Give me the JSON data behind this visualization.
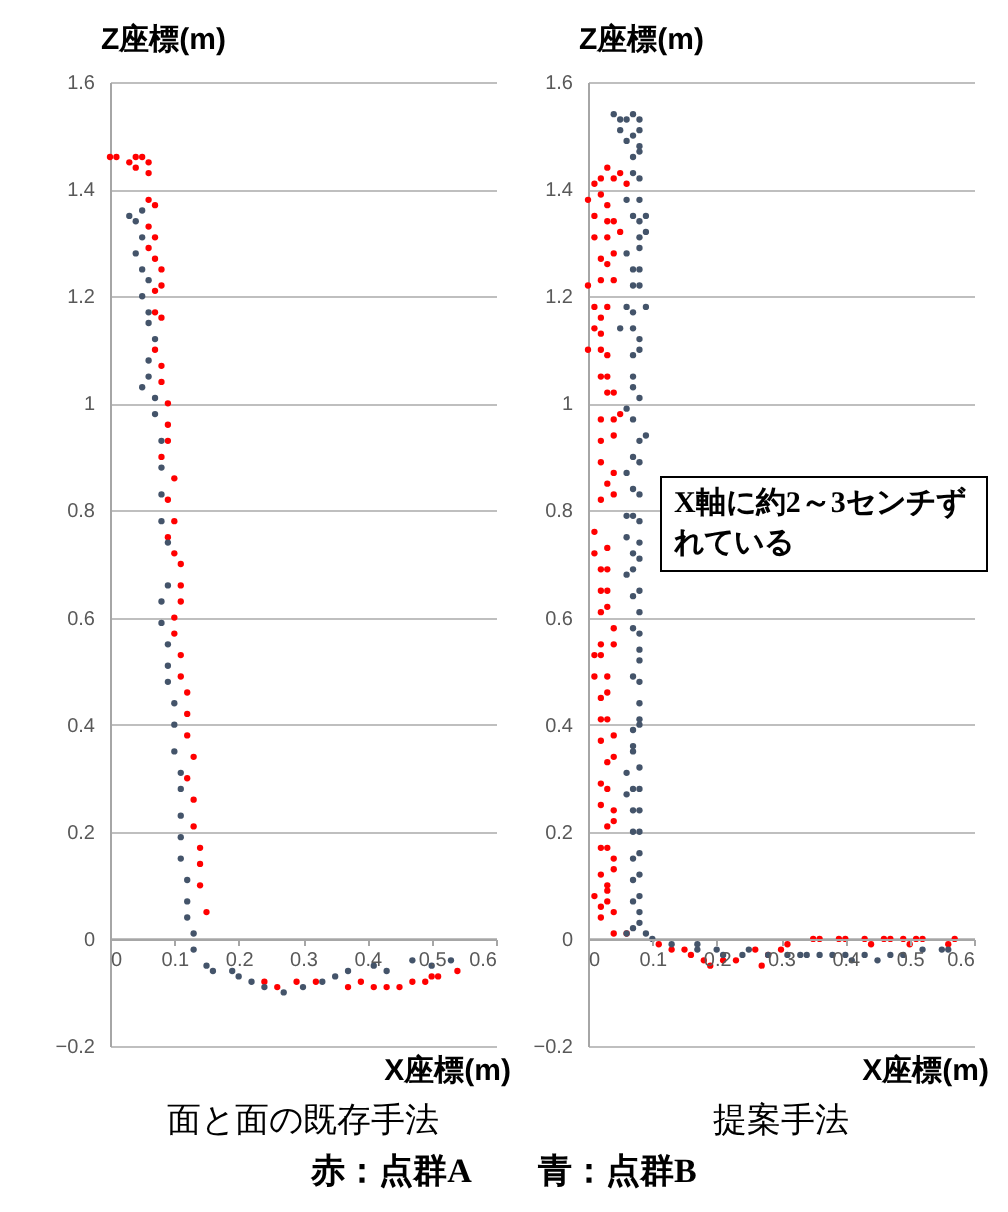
{
  "chart_data": [
    {
      "type": "scatter",
      "title": "面と面の既存手法",
      "xlabel": "X座標(m)",
      "ylabel": "Z座標(m)",
      "xlim": [
        0,
        0.6
      ],
      "ylim": [
        -0.2,
        1.6
      ],
      "xticks": [
        0,
        0.1,
        0.2,
        0.3,
        0.4,
        0.5,
        0.6
      ],
      "yticks": [
        -0.2,
        0,
        0.2,
        0.4,
        0.6,
        0.8,
        1,
        1.2,
        1.4,
        1.6
      ],
      "grid": "y",
      "marker": "circle",
      "annotations": [
        "赤：点群A　　青：点群B"
      ],
      "series": [
        {
          "color": "#ff0000",
          "x": [
            0.0,
            0.01,
            0.03,
            0.04,
            0.05,
            0.06,
            0.04,
            0.06,
            0.06,
            0.07,
            0.06,
            0.07,
            0.06,
            0.07,
            0.08,
            0.08,
            0.07,
            0.07,
            0.08,
            0.07,
            0.08,
            0.08,
            0.09,
            0.09,
            0.09,
            0.08,
            0.1,
            0.09,
            0.1,
            0.09,
            0.1,
            0.11,
            0.11,
            0.11,
            0.1,
            0.1,
            0.11,
            0.11,
            0.12,
            0.12,
            0.12,
            0.13,
            0.12,
            0.13,
            0.13,
            0.14,
            0.14,
            0.14,
            0.15,
            0.24,
            0.26,
            0.29,
            0.32,
            0.37,
            0.39,
            0.41,
            0.43,
            0.45,
            0.47,
            0.49,
            0.5,
            0.51,
            0.54
          ],
          "values": [
            1.46,
            1.46,
            1.45,
            1.46,
            1.46,
            1.45,
            1.44,
            1.43,
            1.38,
            1.37,
            1.33,
            1.31,
            1.29,
            1.27,
            1.25,
            1.22,
            1.21,
            1.17,
            1.16,
            1.1,
            1.07,
            1.04,
            1.0,
            0.96,
            0.93,
            0.9,
            0.86,
            0.82,
            0.78,
            0.75,
            0.72,
            0.7,
            0.66,
            0.63,
            0.6,
            0.57,
            0.53,
            0.49,
            0.46,
            0.42,
            0.38,
            0.34,
            0.3,
            0.26,
            0.21,
            0.17,
            0.14,
            0.1,
            0.05,
            -0.08,
            -0.09,
            -0.08,
            -0.08,
            -0.09,
            -0.08,
            -0.09,
            -0.09,
            -0.09,
            -0.08,
            -0.08,
            -0.07,
            -0.07,
            -0.06
          ]
        },
        {
          "color": "#44546a",
          "x": [
            0.03,
            0.04,
            0.05,
            0.05,
            0.04,
            0.05,
            0.06,
            0.05,
            0.06,
            0.06,
            0.07,
            0.06,
            0.06,
            0.05,
            0.07,
            0.07,
            0.08,
            0.08,
            0.08,
            0.08,
            0.09,
            0.09,
            0.08,
            0.08,
            0.09,
            0.09,
            0.09,
            0.1,
            0.1,
            0.1,
            0.11,
            0.11,
            0.11,
            0.11,
            0.11,
            0.12,
            0.12,
            0.12,
            0.13,
            0.13,
            0.15,
            0.16,
            0.19,
            0.2,
            0.22,
            0.24,
            0.27,
            0.3,
            0.33,
            0.35,
            0.37,
            0.41,
            0.43,
            0.47,
            0.5,
            0.53
          ],
          "values": [
            1.35,
            1.34,
            1.36,
            1.31,
            1.28,
            1.25,
            1.23,
            1.2,
            1.17,
            1.15,
            1.12,
            1.08,
            1.05,
            1.03,
            1.01,
            0.98,
            0.93,
            0.88,
            0.83,
            0.78,
            0.74,
            0.66,
            0.63,
            0.59,
            0.55,
            0.51,
            0.48,
            0.44,
            0.4,
            0.35,
            0.31,
            0.28,
            0.23,
            0.19,
            0.15,
            0.11,
            0.07,
            0.04,
            0.01,
            -0.02,
            -0.05,
            -0.06,
            -0.06,
            -0.07,
            -0.08,
            -0.09,
            -0.1,
            -0.09,
            -0.08,
            -0.07,
            -0.06,
            -0.05,
            -0.06,
            -0.04,
            -0.05,
            -0.04
          ]
        }
      ]
    },
    {
      "type": "scatter",
      "title": "提案手法",
      "xlabel": "X座標(m)",
      "ylabel": "Z座標(m)",
      "xlim": [
        0,
        0.6
      ],
      "ylim": [
        -0.2,
        1.6
      ],
      "xticks": [
        0,
        0.1,
        0.2,
        0.3,
        0.4,
        0.5,
        0.6
      ],
      "yticks": [
        -0.2,
        0,
        0.2,
        0.4,
        0.6,
        0.8,
        1,
        1.2,
        1.4,
        1.6
      ],
      "grid": "y",
      "marker": "circle",
      "annotations": [
        "X軸に約2～3センチずれている"
      ],
      "series": [
        {
          "color": "#ff0000",
          "x": [
            0.01,
            0.02,
            0.04,
            0.05,
            0.03,
            0.06,
            0.0,
            0.02,
            0.03,
            0.01,
            0.03,
            0.04,
            0.01,
            0.03,
            0.05,
            0.02,
            0.03,
            0.04,
            0.0,
            0.02,
            0.04,
            0.01,
            0.03,
            0.02,
            0.01,
            0.02,
            0.0,
            0.02,
            0.03,
            0.02,
            0.03,
            0.03,
            0.04,
            0.02,
            0.04,
            0.05,
            0.02,
            0.04,
            0.02,
            0.04,
            0.03,
            0.02,
            0.04,
            0.01,
            0.03,
            0.01,
            0.02,
            0.03,
            0.02,
            0.03,
            0.02,
            0.03,
            0.04,
            0.02,
            0.04,
            0.01,
            0.02,
            0.01,
            0.03,
            0.02,
            0.03,
            0.02,
            0.03,
            0.04,
            0.02,
            0.04,
            0.03,
            0.02,
            0.03,
            0.02,
            0.04,
            0.03,
            0.04,
            0.02,
            0.03,
            0.04,
            0.02,
            0.04,
            0.03,
            0.01,
            0.03,
            0.02,
            0.03,
            0.04,
            0.02,
            0.04,
            0.06,
            0.11,
            0.13,
            0.16,
            0.15,
            0.18,
            0.19,
            0.21,
            0.23,
            0.26,
            0.27,
            0.28,
            0.3,
            0.31,
            0.35,
            0.36,
            0.39,
            0.4,
            0.43,
            0.44,
            0.46,
            0.47,
            0.49,
            0.5,
            0.51,
            0.52,
            0.56,
            0.57
          ],
          "values": [
            1.41,
            1.42,
            1.42,
            1.43,
            1.44,
            1.41,
            1.38,
            1.39,
            1.37,
            1.35,
            1.34,
            1.34,
            1.31,
            1.31,
            1.32,
            1.27,
            1.26,
            1.28,
            1.22,
            1.23,
            1.23,
            1.18,
            1.18,
            1.16,
            1.14,
            1.13,
            1.1,
            1.1,
            1.09,
            1.05,
            1.05,
            1.02,
            1.02,
            0.97,
            0.97,
            0.98,
            0.93,
            0.94,
            0.89,
            0.87,
            0.85,
            0.82,
            0.83,
            0.76,
            0.73,
            0.72,
            0.69,
            0.69,
            0.65,
            0.65,
            0.61,
            0.62,
            0.58,
            0.55,
            0.55,
            0.53,
            0.53,
            0.49,
            0.49,
            0.45,
            0.46,
            0.41,
            0.41,
            0.38,
            0.37,
            0.34,
            0.33,
            0.29,
            0.28,
            0.25,
            0.24,
            0.21,
            0.22,
            0.17,
            0.17,
            0.15,
            0.12,
            0.13,
            0.1,
            0.08,
            0.09,
            0.06,
            0.07,
            0.05,
            0.04,
            0.01,
            0.01,
            -0.01,
            -0.02,
            -0.03,
            -0.02,
            -0.04,
            -0.05,
            -0.04,
            -0.04,
            -0.02,
            -0.05,
            -0.03,
            -0.02,
            -0.01,
            0.0,
            0.0,
            0.0,
            0.0,
            0.0,
            -0.01,
            0.0,
            0.0,
            0.0,
            -0.01,
            0.0,
            0.0,
            -0.01,
            0.0
          ]
        },
        {
          "color": "#44546a",
          "x": [
            0.04,
            0.05,
            0.06,
            0.07,
            0.08,
            0.05,
            0.07,
            0.08,
            0.06,
            0.08,
            0.07,
            0.08,
            0.07,
            0.08,
            0.06,
            0.08,
            0.07,
            0.08,
            0.09,
            0.08,
            0.09,
            0.06,
            0.08,
            0.07,
            0.08,
            0.07,
            0.08,
            0.06,
            0.07,
            0.09,
            0.05,
            0.07,
            0.08,
            0.07,
            0.08,
            0.07,
            0.07,
            0.08,
            0.06,
            0.07,
            0.08,
            0.09,
            0.07,
            0.08,
            0.06,
            0.07,
            0.08,
            0.06,
            0.07,
            0.08,
            0.06,
            0.08,
            0.07,
            0.08,
            0.06,
            0.07,
            0.07,
            0.08,
            0.08,
            0.07,
            0.08,
            0.08,
            0.08,
            0.07,
            0.08,
            0.08,
            0.08,
            0.07,
            0.08,
            0.07,
            0.07,
            0.08,
            0.06,
            0.07,
            0.08,
            0.06,
            0.07,
            0.08,
            0.07,
            0.08,
            0.08,
            0.07,
            0.08,
            0.07,
            0.08,
            0.07,
            0.08,
            0.08,
            0.07,
            0.06,
            0.09,
            0.1,
            0.13,
            0.17,
            0.17,
            0.2,
            0.21,
            0.24,
            0.25,
            0.28,
            0.31,
            0.33,
            0.34,
            0.36,
            0.38,
            0.4,
            0.41,
            0.43,
            0.45,
            0.47,
            0.49,
            0.52,
            0.55,
            0.56
          ],
          "values": [
            1.54,
            1.53,
            1.53,
            1.54,
            1.53,
            1.51,
            1.5,
            1.51,
            1.49,
            1.48,
            1.46,
            1.47,
            1.43,
            1.42,
            1.38,
            1.38,
            1.35,
            1.34,
            1.35,
            1.31,
            1.32,
            1.28,
            1.29,
            1.25,
            1.25,
            1.22,
            1.22,
            1.18,
            1.17,
            1.18,
            1.14,
            1.14,
            1.12,
            1.09,
            1.1,
            1.05,
            1.03,
            1.01,
            0.99,
            0.97,
            0.93,
            0.94,
            0.9,
            0.89,
            0.87,
            0.84,
            0.83,
            0.79,
            0.79,
            0.78,
            0.75,
            0.74,
            0.72,
            0.71,
            0.68,
            0.69,
            0.64,
            0.65,
            0.61,
            0.58,
            0.57,
            0.54,
            0.52,
            0.49,
            0.48,
            0.44,
            0.41,
            0.39,
            0.4,
            0.36,
            0.35,
            0.32,
            0.31,
            0.28,
            0.28,
            0.27,
            0.24,
            0.24,
            0.2,
            0.2,
            0.16,
            0.15,
            0.12,
            0.11,
            0.08,
            0.07,
            0.05,
            0.03,
            0.02,
            0.01,
            0.01,
            0.0,
            -0.01,
            -0.02,
            -0.01,
            -0.02,
            -0.03,
            -0.03,
            -0.02,
            -0.03,
            -0.03,
            -0.03,
            -0.03,
            -0.03,
            -0.03,
            -0.03,
            -0.04,
            -0.03,
            -0.04,
            -0.03,
            -0.03,
            -0.02,
            -0.02,
            -0.02
          ]
        }
      ]
    }
  ]
}
